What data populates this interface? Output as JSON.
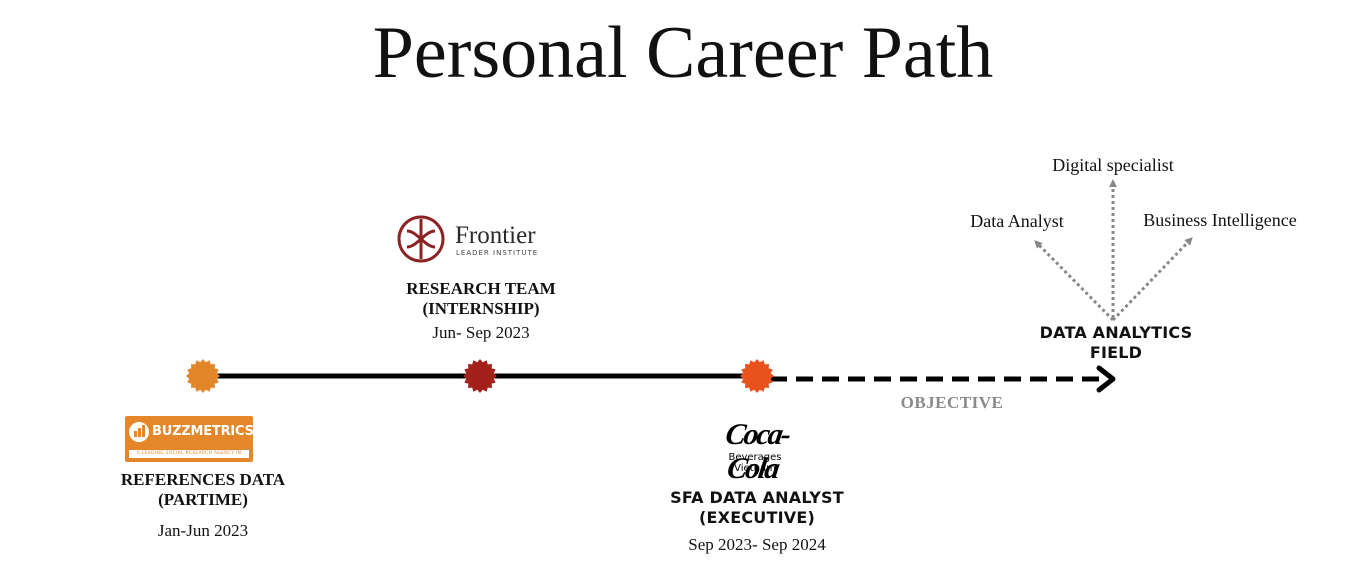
{
  "title": "Personal Career Path",
  "milestones": [
    {
      "logo": {
        "name": "BUZZMETRICS",
        "tagline": "A LEADING SOCIAL RESEARCH AGENCY IN VIETNAM",
        "color": "#e4872b"
      },
      "role_line1": "REFERENCES DATA",
      "role_line2": "(PARTIME)",
      "dates": "Jan-Jun 2023",
      "dot_color": "#e3862a"
    },
    {
      "logo": {
        "name": "Frontier",
        "subtitle": "LEADER INSTITUTE",
        "color": "#8b2323"
      },
      "role_line1": "RESEARCH TEAM",
      "role_line2": "(INTERNSHIP)",
      "dates": "Jun- Sep 2023",
      "dot_color": "#a3201c"
    },
    {
      "logo": {
        "name": "Coca-Cola",
        "subtitle_line1": "Beverages",
        "subtitle_line2": "Vietnam"
      },
      "role_line1": "SFA DATA ANALYST",
      "role_line2": "(EXECUTIVE)",
      "dates": "Sep 2023- Sep 2024",
      "dot_color": "#e8531b"
    }
  ],
  "objective": {
    "label": "OBJECTIVE",
    "target_line1": "DATA ANALYTICS",
    "target_line2": "FIELD",
    "branches": [
      "Data Analyst",
      "Digital specialist",
      "Business Intelligence"
    ]
  },
  "colors": {
    "line": "#000000",
    "branch_arrow": "#888888",
    "objective_text": "#8a8a8a"
  }
}
